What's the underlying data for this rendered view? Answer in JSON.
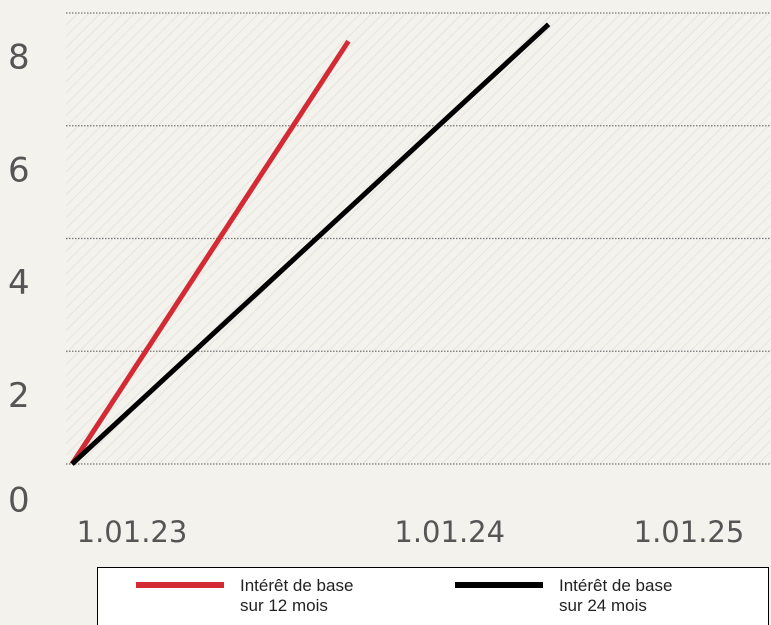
{
  "chart_data": {
    "type": "line",
    "series": [
      {
        "name": "Intérêt de base sur 12 mois",
        "color": "#d42a34",
        "x": [
          2023,
          2023.87
        ],
        "values": [
          0,
          7.5
        ]
      },
      {
        "name": "Intérêt de base sur 24 mois",
        "color": "#000000",
        "x": [
          2023,
          2024.5
        ],
        "values": [
          0,
          7.8
        ]
      }
    ],
    "xlim": [
      2023,
      2025.2
    ],
    "xticks": [
      {
        "value": 2023,
        "label": "1.01.23"
      },
      {
        "value": 2024,
        "label": "1.01.24"
      },
      {
        "value": 2025,
        "label": "1.01.25"
      }
    ],
    "ylim": [
      0,
      8
    ],
    "yticks": [
      0,
      2,
      4,
      6,
      8
    ],
    "grid": true
  }
}
